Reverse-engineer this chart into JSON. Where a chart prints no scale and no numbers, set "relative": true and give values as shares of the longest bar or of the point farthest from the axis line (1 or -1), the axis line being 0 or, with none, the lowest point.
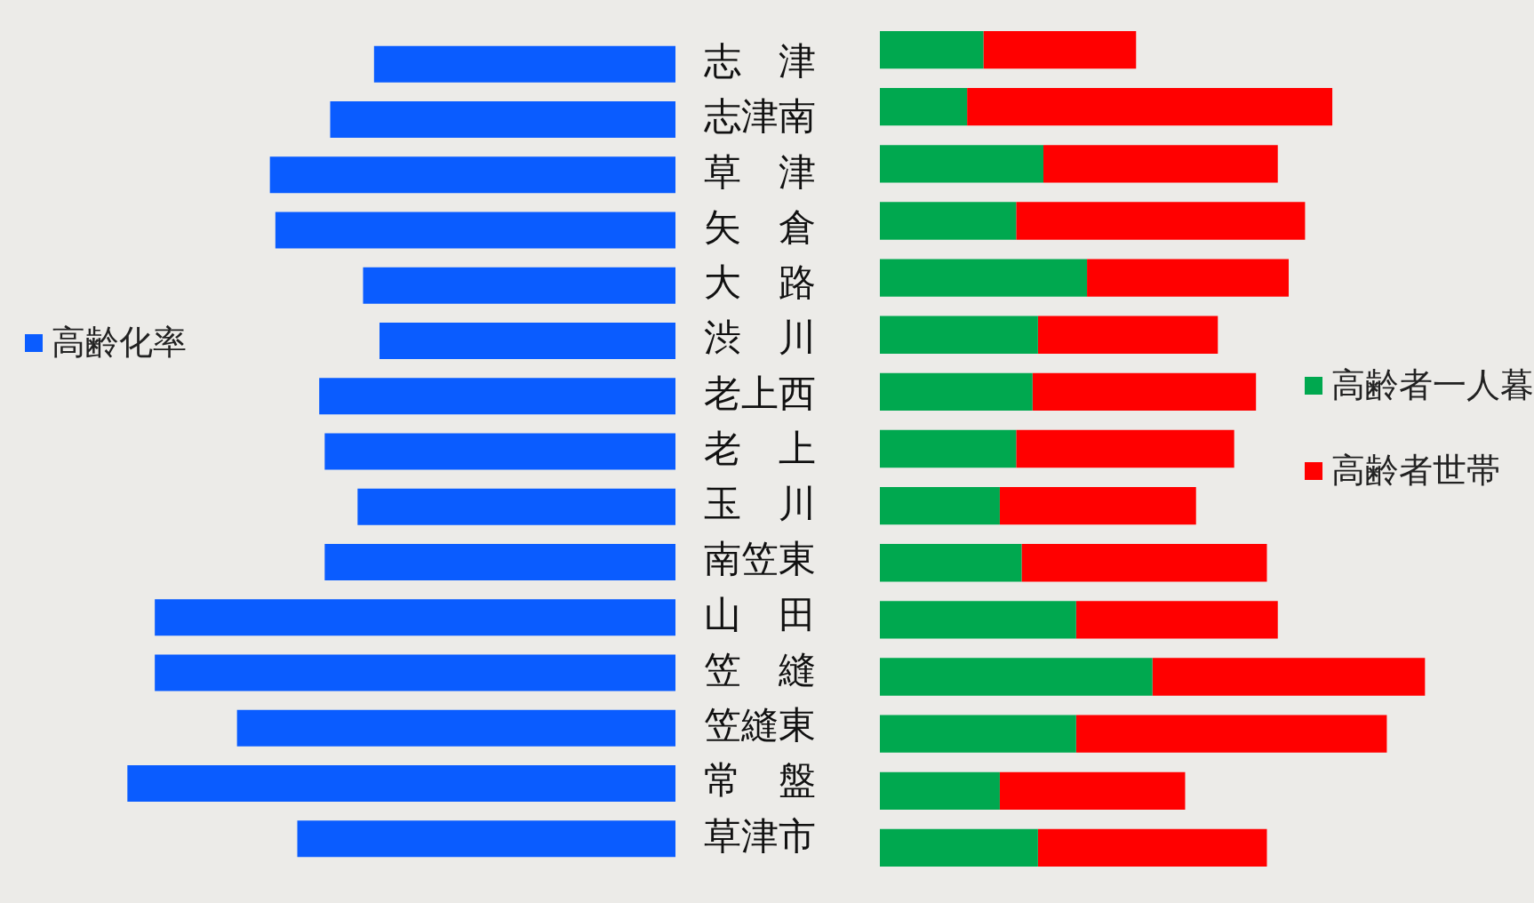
{
  "chart_data": [
    {
      "type": "bar",
      "orientation": "horizontal",
      "relative": true,
      "legend": "left",
      "tick_labels": "y",
      "categories": [
        "志　津",
        "志津南",
        "草　津",
        "矢　倉",
        "大　路",
        "渋　川",
        "老上西",
        "老　上",
        "玉　川",
        "南笠東",
        "山　田",
        "笠　縫",
        "笠縫東",
        "常　盤",
        "草津市"
      ],
      "series": [
        {
          "name": "高齢化率",
          "color": "#0a5cff",
          "values": [
            0.55,
            0.63,
            0.74,
            0.73,
            0.57,
            0.54,
            0.65,
            0.64,
            0.58,
            0.64,
            0.95,
            0.95,
            0.8,
            1,
            0.69
          ]
        }
      ]
    },
    {
      "type": "bar",
      "orientation": "horizontal",
      "relative": true,
      "stacked": true,
      "legend": "right",
      "tick_labels": false,
      "categories": [
        null,
        null,
        null,
        null,
        null,
        null,
        null,
        null,
        null,
        null,
        null,
        null,
        null,
        null,
        null
      ],
      "series": [
        {
          "name": "高齢者一人暮",
          "color": "#00a84f",
          "values": [
            0.19,
            0.16,
            0.3,
            0.25,
            0.38,
            0.29,
            0.28,
            0.25,
            0.22,
            0.26,
            0.36,
            0.5,
            0.36,
            0.22,
            0.29
          ]
        },
        {
          "name": "高齢者世帯",
          "color": "#ff0000",
          "values": [
            0.28,
            0.67,
            0.43,
            0.53,
            0.37,
            0.33,
            0.41,
            0.4,
            0.36,
            0.45,
            0.37,
            0.5,
            0.57,
            0.34,
            0.42
          ]
        }
      ]
    }
  ]
}
